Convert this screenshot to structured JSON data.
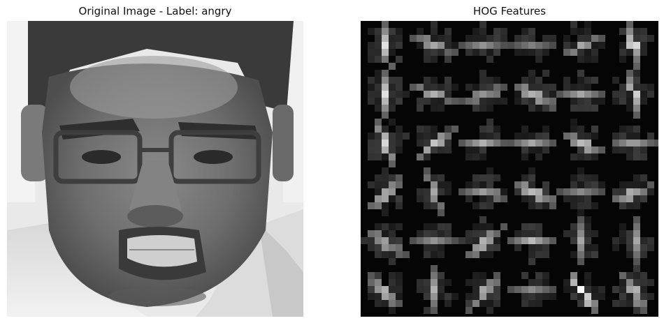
{
  "panels": {
    "original": {
      "title": "Original Image - Label: angry"
    },
    "hog": {
      "title": "HOG Features",
      "background": "#050505",
      "grid": {
        "rows": 6,
        "cols": 6
      },
      "dominant_strengths": [
        [
          0.85,
          0.55,
          0.45,
          0.35,
          0.55,
          0.8
        ],
        [
          0.85,
          0.6,
          0.45,
          0.6,
          0.55,
          0.75
        ],
        [
          0.8,
          0.7,
          0.6,
          0.55,
          0.65,
          0.55
        ],
        [
          0.6,
          0.55,
          0.5,
          0.65,
          0.4,
          0.65
        ],
        [
          0.5,
          0.45,
          0.6,
          0.65,
          0.55,
          0.55
        ],
        [
          0.6,
          0.6,
          0.55,
          0.4,
          1.0,
          0.6
        ]
      ]
    }
  }
}
